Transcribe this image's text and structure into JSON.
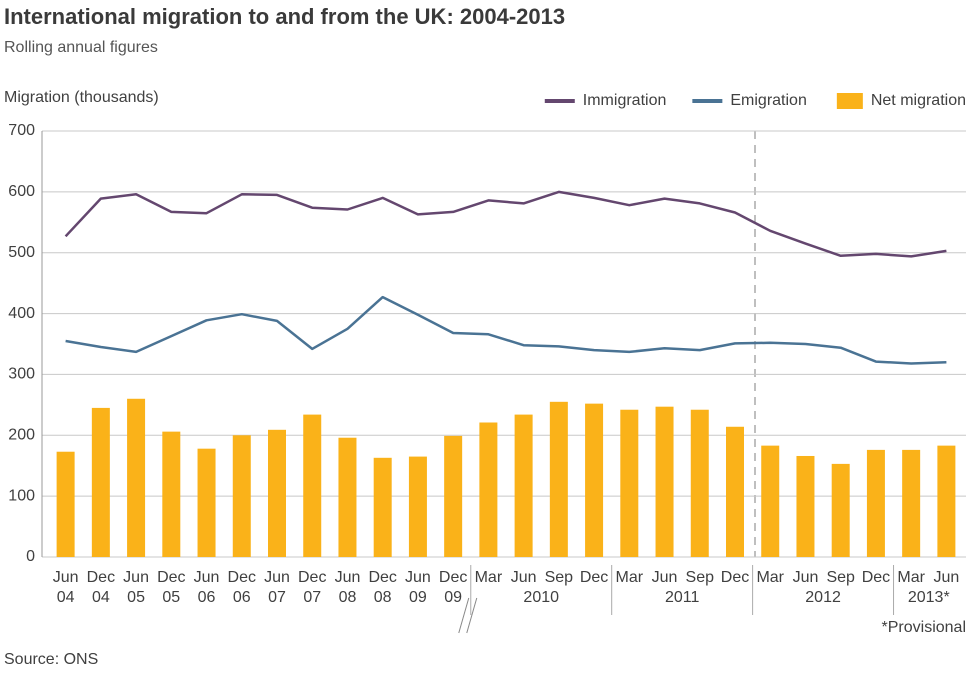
{
  "chart_data": {
    "type": "combo",
    "title": "International migration to and from the UK: 2004-2013",
    "subtitle": "Rolling annual figures",
    "y_label": "Migration (thousands)",
    "source": "Source: ONS",
    "note": "*Provisional",
    "categories": [
      "Jun",
      "Dec",
      "Jun",
      "Dec",
      "Jun",
      "Dec",
      "Jun",
      "Dec",
      "Jun",
      "Dec",
      "Jun",
      "Dec",
      "Mar",
      "Jun",
      "Sep",
      "Dec",
      "Mar",
      "Jun",
      "Sep",
      "Dec",
      "Mar",
      "Jun",
      "Sep",
      "Dec",
      "Mar",
      "Jun"
    ],
    "category_years": [
      "04",
      "04",
      "05",
      "05",
      "06",
      "06",
      "07",
      "07",
      "08",
      "08",
      "09",
      "09",
      "2010",
      null,
      null,
      null,
      "2011",
      null,
      null,
      null,
      "2012",
      null,
      null,
      null,
      "2013*",
      null
    ],
    "ylim": [
      0,
      700
    ],
    "yticks": [
      0,
      100,
      200,
      300,
      400,
      500,
      600,
      700
    ],
    "grid": true,
    "legend": "top-right",
    "series": [
      {
        "name": "Immigration",
        "type": "line",
        "color": "#64476f",
        "values": [
          527,
          589,
          596,
          567,
          565,
          596,
          595,
          574,
          571,
          590,
          563,
          567,
          586,
          581,
          600,
          590,
          578,
          589,
          581,
          566,
          536,
          515,
          495,
          498,
          494,
          503
        ]
      },
      {
        "name": "Emigration",
        "type": "line",
        "color": "#4a7394",
        "values": [
          355,
          345,
          337,
          363,
          389,
          399,
          388,
          342,
          375,
          427,
          398,
          368,
          366,
          348,
          346,
          340,
          337,
          343,
          340,
          351,
          352,
          350,
          344,
          321,
          318,
          320
        ]
      },
      {
        "name": "Net migration",
        "type": "bar",
        "color": "#fab219",
        "values": [
          173,
          245,
          260,
          206,
          178,
          200,
          209,
          234,
          196,
          163,
          165,
          199,
          221,
          234,
          255,
          252,
          242,
          247,
          242,
          214,
          183,
          166,
          153,
          176,
          176,
          183
        ]
      }
    ]
  }
}
